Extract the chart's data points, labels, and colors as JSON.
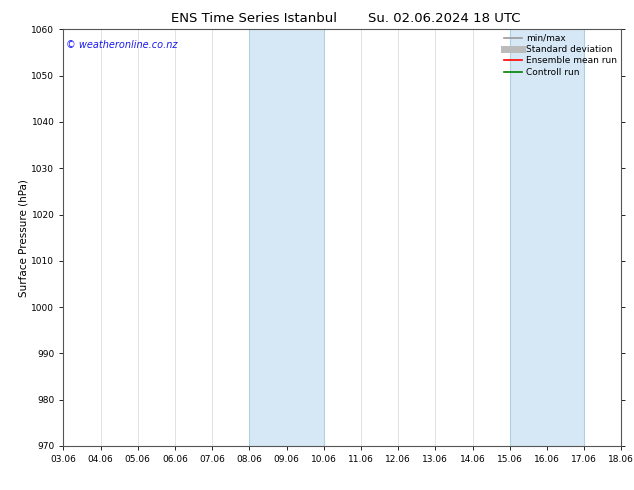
{
  "title_left": "ENS Time Series Istanbul",
  "title_right": "Su. 02.06.2024 18 UTC",
  "ylabel": "Surface Pressure (hPa)",
  "ylim": [
    970,
    1060
  ],
  "yticks": [
    970,
    980,
    990,
    1000,
    1010,
    1020,
    1030,
    1040,
    1050,
    1060
  ],
  "xlim": [
    0,
    15
  ],
  "xtick_labels": [
    "03.06",
    "04.06",
    "05.06",
    "06.06",
    "07.06",
    "08.06",
    "09.06",
    "10.06",
    "11.06",
    "12.06",
    "13.06",
    "14.06",
    "15.06",
    "16.06",
    "17.06",
    "18.06"
  ],
  "xtick_positions": [
    0,
    1,
    2,
    3,
    4,
    5,
    6,
    7,
    8,
    9,
    10,
    11,
    12,
    13,
    14,
    15
  ],
  "shaded_bands": [
    {
      "xmin": 5,
      "xmax": 7,
      "color": "#d6e8f5",
      "edge": "#b0cfe0"
    },
    {
      "xmin": 12,
      "xmax": 14,
      "color": "#d6e8f5",
      "edge": "#b0cfe0"
    }
  ],
  "watermark_text": "© weatheronline.co.nz",
  "watermark_color": "#1a1aee",
  "legend_entries": [
    {
      "label": "min/max",
      "color": "#999999",
      "lw": 1.2
    },
    {
      "label": "Standard deviation",
      "color": "#bbbbbb",
      "lw": 5
    },
    {
      "label": "Ensemble mean run",
      "color": "#ff0000",
      "lw": 1.2
    },
    {
      "label": "Controll run",
      "color": "#008000",
      "lw": 1.2
    }
  ],
  "bg_color": "#ffffff",
  "spine_color": "#555555",
  "vgrid_color": "#cccccc",
  "title_fontsize": 9.5,
  "ylabel_fontsize": 7.5,
  "tick_fontsize": 6.5,
  "watermark_fontsize": 7,
  "legend_fontsize": 6.5,
  "figsize": [
    6.34,
    4.9
  ],
  "dpi": 100
}
